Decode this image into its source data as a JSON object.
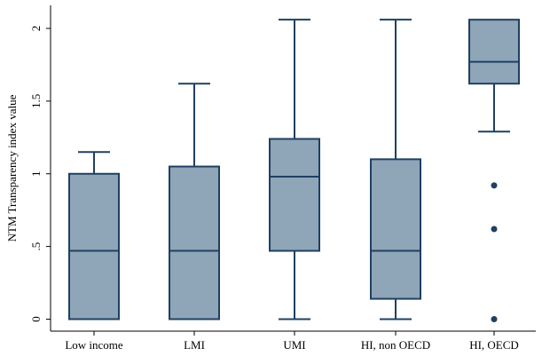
{
  "chart_data": {
    "type": "boxplot",
    "title": "",
    "xlabel": "",
    "ylabel": "NTM Transparency index value",
    "ylim": [
      -0.08,
      2.12
    ],
    "y_ticks": [
      0,
      0.5,
      1,
      1.5,
      2
    ],
    "y_tick_labels": [
      "0",
      ".5",
      "1",
      "1.5",
      "2"
    ],
    "grid": false,
    "legend": "none",
    "colors": {
      "box_fill": "#8fa5b8",
      "box_stroke": "#1f4061",
      "whisker": "#1f4061",
      "outlier": "#1f4061",
      "axis": "#000000"
    },
    "categories": [
      "Low income",
      "LMI",
      "UMI",
      "HI, non OECD",
      "HI, OECD"
    ],
    "boxes": [
      {
        "whisker_low": 0,
        "q1": 0,
        "median": 0.47,
        "q3": 1.0,
        "whisker_high": 1.15,
        "outliers": []
      },
      {
        "whisker_low": 0,
        "q1": 0,
        "median": 0.47,
        "q3": 1.05,
        "whisker_high": 1.62,
        "outliers": []
      },
      {
        "whisker_low": 0,
        "q1": 0.47,
        "median": 0.98,
        "q3": 1.24,
        "whisker_high": 2.06,
        "outliers": []
      },
      {
        "whisker_low": 0,
        "q1": 0.14,
        "median": 0.47,
        "q3": 1.1,
        "whisker_high": 2.06,
        "outliers": []
      },
      {
        "whisker_low": 1.29,
        "q1": 1.62,
        "median": 1.77,
        "q3": 2.06,
        "whisker_high": 2.06,
        "outliers": [
          0.92,
          0.62,
          0
        ]
      }
    ]
  }
}
